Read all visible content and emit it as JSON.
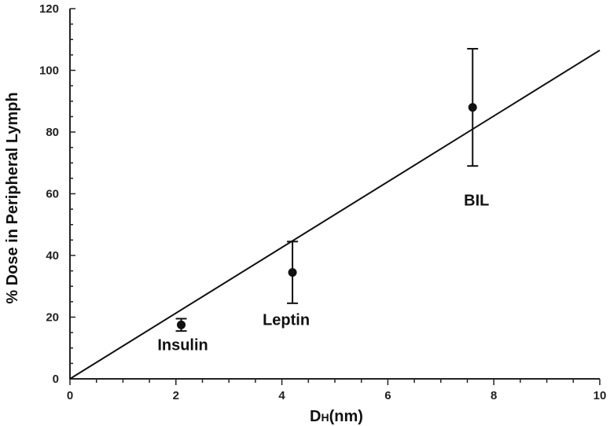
{
  "chart_data": {
    "type": "scatter",
    "title": "",
    "xlabel_main": "D",
    "xlabel_sub": "H",
    "xlabel_rest": "(nm)",
    "ylabel": "% Dose in Peripheral Lymph",
    "xlim": [
      0,
      10
    ],
    "ylim": [
      0,
      120
    ],
    "x_ticks": [
      "0",
      "2",
      "4",
      "6",
      "8",
      "10"
    ],
    "y_ticks": [
      "0",
      "20",
      "40",
      "60",
      "80",
      "100",
      "120"
    ],
    "grid": false,
    "legend": "none",
    "series": [
      {
        "points": [
          {
            "label": "Insulin",
            "x": 2.1,
            "y": 17.5,
            "err_low": 15.5,
            "err_high": 19.5
          },
          {
            "label": "Leptin",
            "x": 4.2,
            "y": 34.5,
            "err_low": 24.5,
            "err_high": 44.5
          },
          {
            "label": "BIL",
            "x": 7.6,
            "y": 88,
            "err_low": 69,
            "err_high": 107
          }
        ]
      }
    ],
    "fit_line": {
      "x": [
        0,
        10
      ],
      "y": [
        0,
        106.5
      ]
    }
  },
  "colors": {
    "axis": "#222222",
    "marker": "#111111",
    "line": "#111111"
  }
}
